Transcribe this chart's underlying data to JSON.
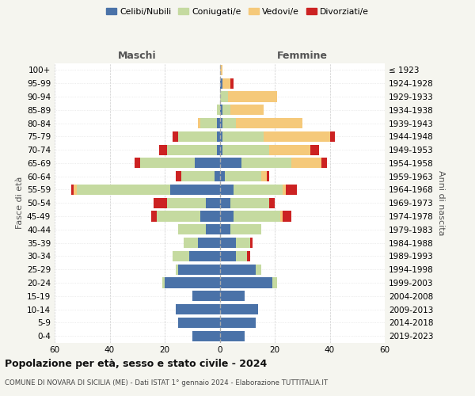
{
  "age_groups": [
    "0-4",
    "5-9",
    "10-14",
    "15-19",
    "20-24",
    "25-29",
    "30-34",
    "35-39",
    "40-44",
    "45-49",
    "50-54",
    "55-59",
    "60-64",
    "65-69",
    "70-74",
    "75-79",
    "80-84",
    "85-89",
    "90-94",
    "95-99",
    "100+"
  ],
  "birth_years": [
    "2019-2023",
    "2014-2018",
    "2009-2013",
    "2004-2008",
    "1999-2003",
    "1994-1998",
    "1989-1993",
    "1984-1988",
    "1979-1983",
    "1974-1978",
    "1969-1973",
    "1964-1968",
    "1959-1963",
    "1954-1958",
    "1949-1953",
    "1944-1948",
    "1939-1943",
    "1934-1938",
    "1929-1933",
    "1924-1928",
    "≤ 1923"
  ],
  "colors": {
    "celibi": "#4a72a8",
    "coniugati": "#c5daa0",
    "vedovi": "#f5c97a",
    "divorziati": "#cc2222"
  },
  "maschi": {
    "celibi": [
      10,
      15,
      16,
      10,
      20,
      15,
      11,
      8,
      5,
      7,
      5,
      18,
      2,
      9,
      1,
      1,
      1,
      0,
      0,
      0,
      0
    ],
    "coniugati": [
      0,
      0,
      0,
      0,
      1,
      1,
      6,
      5,
      10,
      16,
      14,
      34,
      12,
      20,
      18,
      14,
      6,
      1,
      0,
      0,
      0
    ],
    "vedovi": [
      0,
      0,
      0,
      0,
      0,
      0,
      0,
      0,
      0,
      0,
      0,
      1,
      0,
      0,
      0,
      0,
      1,
      0,
      0,
      0,
      0
    ],
    "divorziati": [
      0,
      0,
      0,
      0,
      0,
      0,
      0,
      0,
      0,
      2,
      5,
      1,
      2,
      2,
      3,
      2,
      0,
      0,
      0,
      0,
      0
    ]
  },
  "femmine": {
    "celibi": [
      9,
      13,
      14,
      9,
      19,
      13,
      6,
      6,
      4,
      5,
      4,
      5,
      2,
      8,
      1,
      1,
      1,
      1,
      0,
      1,
      0
    ],
    "coniugati": [
      0,
      0,
      0,
      0,
      2,
      2,
      4,
      5,
      11,
      17,
      14,
      18,
      13,
      18,
      17,
      15,
      5,
      3,
      3,
      0,
      0
    ],
    "vedovi": [
      0,
      0,
      0,
      0,
      0,
      0,
      0,
      0,
      0,
      1,
      0,
      1,
      2,
      11,
      15,
      24,
      24,
      12,
      18,
      3,
      1
    ],
    "divorziati": [
      0,
      0,
      0,
      0,
      0,
      0,
      1,
      1,
      0,
      3,
      2,
      4,
      1,
      2,
      3,
      2,
      0,
      0,
      0,
      1,
      0
    ]
  },
  "title": "Popolazione per età, sesso e stato civile - 2024",
  "subtitle": "COMUNE DI NOVARA DI SICILIA (ME) - Dati ISTAT 1° gennaio 2024 - Elaborazione TUTTITALIA.IT",
  "xlabel_left": "Maschi",
  "xlabel_right": "Femmine",
  "ylabel_left": "Fasce di età",
  "ylabel_right": "Anni di nascita",
  "legend_labels": [
    "Celibi/Nubili",
    "Coniugati/e",
    "Vedovi/e",
    "Divorziati/e"
  ],
  "xlim": 60,
  "background_color": "#f5f5ef",
  "bar_background": "#ffffff"
}
